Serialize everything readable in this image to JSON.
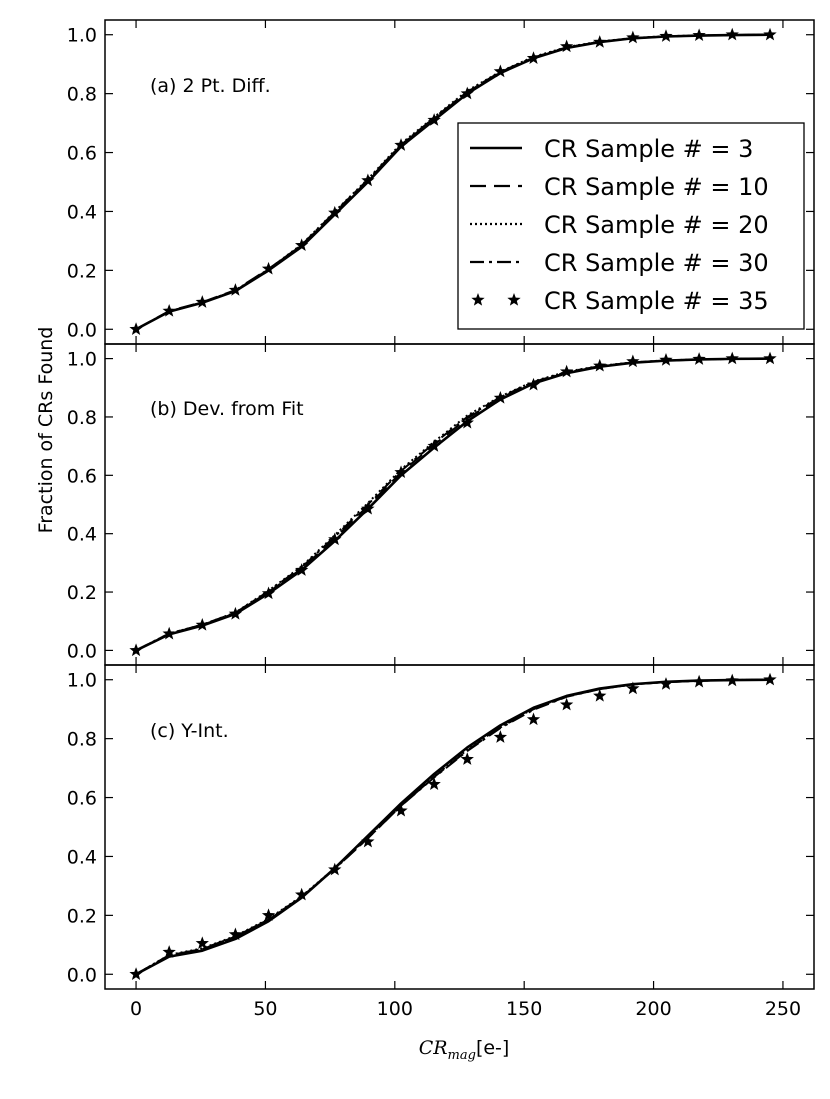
{
  "chart_data": {
    "type": "line",
    "ylabel": "Fraction of CRs Found",
    "xlabel": "[e-]",
    "xlabel_math": {
      "base": "CR",
      "sub": "mag"
    },
    "xlim": [
      -12,
      262
    ],
    "ylim": [
      -0.05,
      1.05
    ],
    "x": [
      0,
      12.8,
      25.6,
      38.4,
      51.2,
      64,
      76.8,
      89.6,
      102.4,
      115.2,
      128,
      140.8,
      153.6,
      166.4,
      179.2,
      192,
      204.8,
      217.6,
      230.4,
      245
    ],
    "xticks": [
      0,
      50,
      100,
      150,
      200,
      250
    ],
    "xtick_labels": [
      "0",
      "50",
      "100",
      "150",
      "200",
      "250"
    ],
    "yticks": [
      0.0,
      0.2,
      0.4,
      0.6,
      0.8,
      1.0
    ],
    "ytick_labels": [
      "0.0",
      "0.2",
      "0.4",
      "0.6",
      "0.8",
      "1.0"
    ],
    "legend": [
      {
        "label": "CR Sample # = 3",
        "style": "solid"
      },
      {
        "label": "CR Sample # = 10",
        "style": "dashed"
      },
      {
        "label": "CR Sample # = 20",
        "style": "dotted"
      },
      {
        "label": "CR Sample # = 30",
        "style": "dashdot"
      },
      {
        "label": "CR Sample # = 35",
        "style": "star"
      }
    ],
    "panels": [
      {
        "label": "(a) 2 Pt. Diff.",
        "series": [
          {
            "name": "CR Sample # = 3",
            "values": [
              0,
              0.06,
              0.09,
              0.13,
              0.2,
              0.28,
              0.39,
              0.5,
              0.62,
              0.71,
              0.8,
              0.87,
              0.92,
              0.955,
              0.975,
              0.988,
              0.994,
              0.997,
              0.999,
              1.0
            ]
          },
          {
            "name": "CR Sample # = 10",
            "values": [
              0,
              0.062,
              0.092,
              0.133,
              0.205,
              0.285,
              0.395,
              0.505,
              0.625,
              0.715,
              0.805,
              0.873,
              0.922,
              0.956,
              0.976,
              0.988,
              0.994,
              0.997,
              0.999,
              1.0
            ]
          },
          {
            "name": "CR Sample # = 20",
            "values": [
              0,
              0.061,
              0.091,
              0.132,
              0.204,
              0.288,
              0.4,
              0.51,
              0.63,
              0.72,
              0.81,
              0.875,
              0.925,
              0.958,
              0.977,
              0.989,
              0.995,
              0.998,
              0.999,
              1.0
            ]
          },
          {
            "name": "CR Sample # = 30",
            "values": [
              0,
              0.06,
              0.091,
              0.131,
              0.203,
              0.286,
              0.398,
              0.508,
              0.626,
              0.718,
              0.806,
              0.874,
              0.923,
              0.957,
              0.976,
              0.988,
              0.994,
              0.997,
              0.999,
              1.0
            ]
          },
          {
            "name": "CR Sample # = 35",
            "values": [
              0,
              0.062,
              0.092,
              0.133,
              0.205,
              0.285,
              0.395,
              0.505,
              0.625,
              0.71,
              0.8,
              0.875,
              0.92,
              0.96,
              0.975,
              0.99,
              0.995,
              0.998,
              1.0,
              1.0
            ]
          }
        ]
      },
      {
        "label": "(b) Dev. from Fit",
        "series": [
          {
            "name": "CR Sample # = 3",
            "values": [
              0,
              0.055,
              0.085,
              0.125,
              0.195,
              0.275,
              0.375,
              0.485,
              0.6,
              0.695,
              0.785,
              0.86,
              0.915,
              0.95,
              0.972,
              0.986,
              0.993,
              0.997,
              0.999,
              1.0
            ]
          },
          {
            "name": "CR Sample # = 10",
            "values": [
              0,
              0.057,
              0.087,
              0.128,
              0.2,
              0.28,
              0.385,
              0.495,
              0.61,
              0.705,
              0.795,
              0.865,
              0.918,
              0.952,
              0.973,
              0.986,
              0.993,
              0.997,
              0.999,
              1.0
            ]
          },
          {
            "name": "CR Sample # = 20",
            "values": [
              0,
              0.058,
              0.088,
              0.13,
              0.205,
              0.288,
              0.395,
              0.505,
              0.62,
              0.715,
              0.805,
              0.87,
              0.922,
              0.955,
              0.975,
              0.987,
              0.994,
              0.997,
              0.999,
              1.0
            ]
          },
          {
            "name": "CR Sample # = 30",
            "values": [
              0,
              0.058,
              0.088,
              0.129,
              0.203,
              0.285,
              0.39,
              0.5,
              0.615,
              0.71,
              0.8,
              0.868,
              0.92,
              0.954,
              0.974,
              0.987,
              0.993,
              0.997,
              0.999,
              1.0
            ]
          },
          {
            "name": "CR Sample # = 35",
            "values": [
              0,
              0.057,
              0.087,
              0.125,
              0.195,
              0.275,
              0.38,
              0.485,
              0.61,
              0.7,
              0.78,
              0.865,
              0.91,
              0.955,
              0.975,
              0.99,
              0.995,
              0.998,
              1.0,
              1.0
            ]
          }
        ]
      },
      {
        "label": "(c) Y-Int.",
        "series": [
          {
            "name": "CR Sample # = 3",
            "values": [
              0,
              0.06,
              0.08,
              0.12,
              0.18,
              0.26,
              0.36,
              0.47,
              0.58,
              0.68,
              0.77,
              0.845,
              0.905,
              0.945,
              0.97,
              0.985,
              0.993,
              0.997,
              0.999,
              1.0
            ]
          },
          {
            "name": "CR Sample # = 10",
            "values": [
              0,
              0.065,
              0.085,
              0.128,
              0.185,
              0.262,
              0.358,
              0.462,
              0.572,
              0.67,
              0.76,
              0.838,
              0.9,
              0.943,
              0.968,
              0.984,
              0.992,
              0.996,
              0.999,
              1.0
            ]
          },
          {
            "name": "CR Sample # = 20",
            "values": [
              0,
              0.066,
              0.088,
              0.13,
              0.188,
              0.265,
              0.36,
              0.465,
              0.575,
              0.672,
              0.762,
              0.84,
              0.902,
              0.944,
              0.969,
              0.985,
              0.992,
              0.997,
              0.999,
              1.0
            ]
          },
          {
            "name": "CR Sample # = 30",
            "values": [
              0,
              0.064,
              0.086,
              0.128,
              0.186,
              0.263,
              0.358,
              0.462,
              0.572,
              0.668,
              0.758,
              0.836,
              0.898,
              0.942,
              0.968,
              0.984,
              0.992,
              0.996,
              0.999,
              1.0
            ]
          },
          {
            "name": "CR Sample # = 35",
            "values": [
              0,
              0.075,
              0.105,
              0.135,
              0.2,
              0.27,
              0.355,
              0.45,
              0.555,
              0.645,
              0.73,
              0.805,
              0.865,
              0.915,
              0.945,
              0.97,
              0.985,
              0.993,
              0.997,
              1.0
            ]
          }
        ]
      }
    ]
  }
}
